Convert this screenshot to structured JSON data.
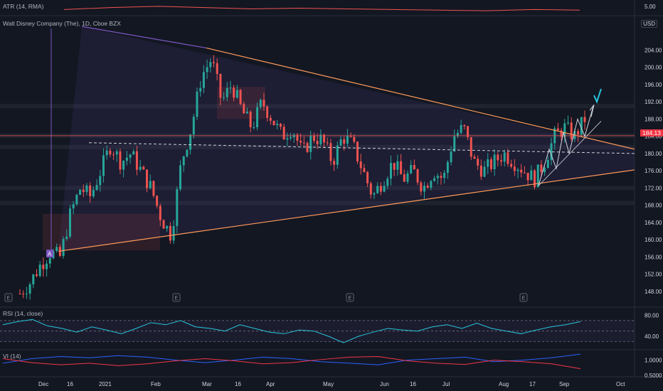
{
  "header": {
    "atr_label": "ATR (14, RMA)",
    "symbol_label": "Walt Disney Company (The), 1D, Cboe BZX",
    "rsi_label": "RSI (14, close)",
    "vi_label": "VI (14)",
    "currency": "USD",
    "last_price": "184.13",
    "event_marker": "A",
    "earnings_marker": "E"
  },
  "colors": {
    "bg": "#131722",
    "up": "#26a69a",
    "down": "#ef5350",
    "trend_upper": "#7e57c2",
    "trend_orange": "#ff9a5a",
    "rsi": "#26c6da",
    "vi_plus": "#2962ff",
    "vi_minus": "#f23645",
    "atr": "#ef5350",
    "check": "#26c6da"
  },
  "chart_data": [
    {
      "type": "candlestick",
      "title": "Walt Disney Company (The), 1D, Cboe BZX",
      "ylabel": "USD",
      "ylim": [
        145,
        212
      ],
      "x_ticks": [
        "Dec",
        "16",
        "2021",
        "Feb",
        "Mar",
        "16",
        "Apr",
        "May",
        "Jun",
        "16",
        "Jul",
        "Aug",
        "17",
        "Sep",
        "Oct"
      ],
      "y_ticks": [
        "148.00",
        "152.00",
        "156.00",
        "160.00",
        "164.00",
        "168.00",
        "172.00",
        "176.00",
        "180.00",
        "184.00",
        "188.00",
        "192.00",
        "196.00",
        "200.00",
        "204.00"
      ],
      "last_price": 184.13,
      "earnings_markers": [
        "E",
        "E",
        "E",
        "E"
      ],
      "price_path": [
        147.5,
        150,
        154,
        157,
        156,
        166,
        172,
        170,
        176,
        182,
        178,
        180,
        176,
        172,
        165,
        161,
        178,
        186,
        198,
        202,
        192,
        196,
        190,
        186,
        192,
        188,
        184,
        186,
        180,
        184,
        183,
        178,
        184,
        182,
        176,
        170,
        174,
        178,
        174,
        176,
        172,
        176,
        174,
        184,
        186,
        178,
        176,
        178,
        180,
        178,
        176,
        174,
        178,
        184,
        186,
        184,
        188
      ],
      "price_levels": [
        184.13,
        181.5,
        172.0,
        168.5,
        191.0
      ],
      "trendlines": [
        {
          "name": "descending-resistance",
          "from": [
            "Nov",
            209
          ],
          "to": [
            "Oct",
            180
          ]
        },
        {
          "name": "ascending-support",
          "from": [
            "Dec",
            158
          ],
          "to": [
            "Oct",
            176
          ]
        },
        {
          "name": "dashed-midline",
          "from": [
            "Dec",
            182.5
          ],
          "to": [
            "Oct",
            180
          ]
        }
      ]
    },
    {
      "type": "line",
      "title": "ATR (14, RMA)",
      "y_ticks": [
        "5.00"
      ],
      "values": [
        4.6,
        4.9,
        5.1,
        4.9,
        4.7,
        4.8,
        4.7,
        4.6,
        4.5,
        4.4,
        4.6,
        4.5
      ]
    },
    {
      "type": "line",
      "title": "RSI (14, close)",
      "y_ticks": [
        "80.00",
        "40.00"
      ],
      "ylim": [
        20,
        90
      ],
      "values": [
        62,
        68,
        72,
        60,
        55,
        48,
        58,
        52,
        45,
        55,
        66,
        62,
        70,
        58,
        55,
        50,
        62,
        55,
        48,
        45,
        52,
        50,
        40,
        28,
        40,
        48,
        55,
        52,
        50,
        58,
        62,
        55,
        65,
        55,
        50,
        45,
        52,
        58,
        62,
        68
      ]
    },
    {
      "type": "line",
      "title": "VI (14)",
      "y_ticks": [
        "1.0000",
        "0.5000"
      ],
      "series": [
        {
          "values": [
            0.9,
            1.05,
            1.12,
            1.08,
            1.15,
            1.1,
            1.0,
            0.92,
            1.0,
            1.1,
            1.05,
            0.95,
            0.9,
            0.85,
            1.0,
            1.05,
            1.1,
            0.95,
            1.0,
            1.08,
            1.2
          ]
        },
        {
          "values": [
            1.05,
            0.92,
            0.85,
            0.9,
            0.82,
            0.88,
            0.98,
            1.05,
            0.98,
            0.88,
            0.92,
            1.02,
            1.1,
            1.12,
            0.98,
            0.9,
            0.86,
            1.0,
            0.95,
            0.88,
            0.72
          ]
        }
      ]
    }
  ]
}
